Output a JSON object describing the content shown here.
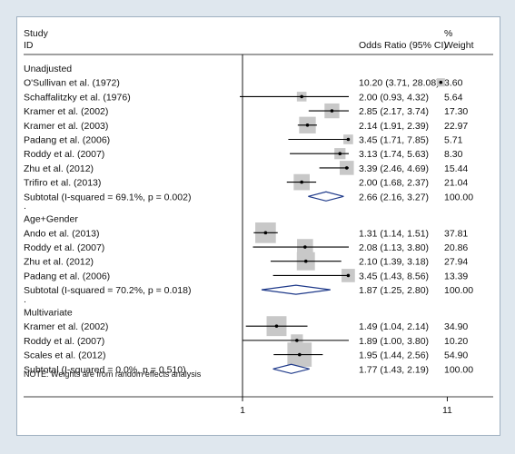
{
  "header": {
    "study_line1": "Study",
    "study_line2": "ID",
    "or_label": "Odds Ratio (95% CI)",
    "weight_line1": "%",
    "weight_line2": "Weight"
  },
  "note": "NOTE: Weights are from random effects analysis",
  "chart_data": {
    "type": "forest",
    "xscale": "log",
    "xticks": [
      1,
      11
    ],
    "reference_line": 1,
    "groups": [
      {
        "name": "Unadjusted",
        "studies": [
          {
            "label": "O'Sullivan et al. (1972)",
            "or": 10.2,
            "lo": 3.71,
            "hi": 28.08,
            "ci_text": "10.20 (3.71, 28.08)",
            "weight": 3.6,
            "weight_text": "3.60"
          },
          {
            "label": "Schaffalitzky et al. (1976)",
            "or": 2.0,
            "lo": 0.93,
            "hi": 4.32,
            "ci_text": "2.00 (0.93, 4.32)",
            "weight": 5.64,
            "weight_text": "5.64"
          },
          {
            "label": "Kramer et al. (2002)",
            "or": 2.85,
            "lo": 2.17,
            "hi": 3.74,
            "ci_text": "2.85 (2.17, 3.74)",
            "weight": 17.3,
            "weight_text": "17.30"
          },
          {
            "label": "Kramer et al. (2003)",
            "or": 2.14,
            "lo": 1.91,
            "hi": 2.39,
            "ci_text": "2.14 (1.91, 2.39)",
            "weight": 22.97,
            "weight_text": "22.97"
          },
          {
            "label": "Padang et al. (2006)",
            "or": 3.45,
            "lo": 1.71,
            "hi": 7.85,
            "ci_text": "3.45 (1.71, 7.85)",
            "weight": 5.71,
            "weight_text": "5.71"
          },
          {
            "label": "Roddy et al. (2007)",
            "or": 3.13,
            "lo": 1.74,
            "hi": 5.63,
            "ci_text": "3.13 (1.74, 5.63)",
            "weight": 8.3,
            "weight_text": "8.30"
          },
          {
            "label": "Zhu et al. (2012)",
            "or": 3.39,
            "lo": 2.46,
            "hi": 4.69,
            "ci_text": "3.39 (2.46, 4.69)",
            "weight": 15.44,
            "weight_text": "15.44"
          },
          {
            "label": "Trifiro et al. (2013)",
            "or": 2.0,
            "lo": 1.68,
            "hi": 2.37,
            "ci_text": "2.00 (1.68, 2.37)",
            "weight": 21.04,
            "weight_text": "21.04"
          }
        ],
        "subtotal": {
          "label": "Subtotal  (I-squared = 69.1%, p = 0.002)",
          "or": 2.66,
          "lo": 2.16,
          "hi": 3.27,
          "ci_text": "2.66 (2.16, 3.27)",
          "weight_text": "100.00"
        }
      },
      {
        "name": "Age+Gender",
        "studies": [
          {
            "label": "Ando et al. (2013)",
            "or": 1.31,
            "lo": 1.14,
            "hi": 1.51,
            "ci_text": "1.31 (1.14, 1.51)",
            "weight": 37.81,
            "weight_text": "37.81"
          },
          {
            "label": "Roddy et al. (2007)",
            "or": 2.08,
            "lo": 1.13,
            "hi": 3.8,
            "ci_text": "2.08 (1.13, 3.80)",
            "weight": 20.86,
            "weight_text": "20.86"
          },
          {
            "label": "Zhu et al. (2012)",
            "or": 2.1,
            "lo": 1.39,
            "hi": 3.18,
            "ci_text": "2.10 (1.39, 3.18)",
            "weight": 27.94,
            "weight_text": "27.94"
          },
          {
            "label": "Padang et al. (2006)",
            "or": 3.45,
            "lo": 1.43,
            "hi": 8.56,
            "ci_text": "3.45 (1.43, 8.56)",
            "weight": 13.39,
            "weight_text": "13.39"
          }
        ],
        "subtotal": {
          "label": "Subtotal  (I-squared = 70.2%, p = 0.018)",
          "or": 1.87,
          "lo": 1.25,
          "hi": 2.8,
          "ci_text": "1.87 (1.25, 2.80)",
          "weight_text": "100.00"
        }
      },
      {
        "name": "Multivariate",
        "studies": [
          {
            "label": "Kramer et al. (2002)",
            "or": 1.49,
            "lo": 1.04,
            "hi": 2.14,
            "ci_text": "1.49 (1.04, 2.14)",
            "weight": 34.9,
            "weight_text": "34.90"
          },
          {
            "label": "Roddy et al. (2007)",
            "or": 1.89,
            "lo": 1.0,
            "hi": 3.8,
            "ci_text": "1.89 (1.00, 3.80)",
            "weight": 10.2,
            "weight_text": "10.20"
          },
          {
            "label": "Scales et al. (2012)",
            "or": 1.95,
            "lo": 1.44,
            "hi": 2.56,
            "ci_text": "1.95 (1.44, 2.56)",
            "weight": 54.9,
            "weight_text": "54.90"
          }
        ],
        "subtotal": {
          "label": "Subtotal  (I-squared = 0.0%, p = 0.510)",
          "or": 1.77,
          "lo": 1.43,
          "hi": 2.19,
          "ci_text": "1.77 (1.43, 2.19)",
          "weight_text": "100.00"
        }
      }
    ]
  }
}
